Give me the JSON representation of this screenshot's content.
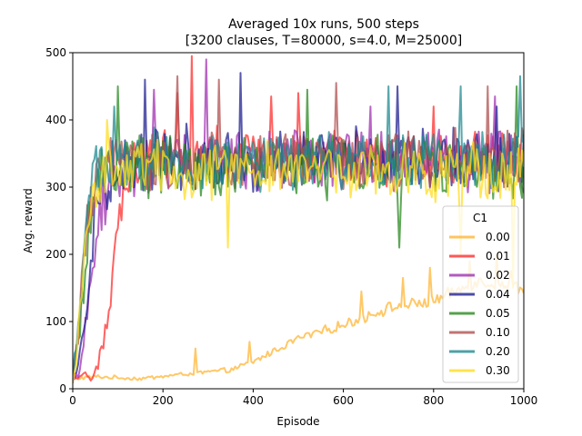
{
  "chart_data": {
    "type": "line",
    "title": "Averaged 10x runs, 500 steps",
    "subtitle": "[3200 clauses, T=80000, s=4.0, M=25000]",
    "xlabel": "Episode",
    "ylabel": "Avg. reward",
    "xlim": [
      0,
      1000
    ],
    "ylim": [
      0,
      500
    ],
    "x_ticks": [
      "0",
      "200",
      "400",
      "600",
      "800",
      "1000"
    ],
    "y_ticks": [
      "0",
      "100",
      "200",
      "300",
      "400",
      "500"
    ],
    "grid": false,
    "legend": {
      "title": "C1",
      "placement": "lower-right"
    },
    "series": [
      {
        "name": "0.00",
        "color": "#ffb534",
        "anchors": [
          [
            0,
            15
          ],
          [
            50,
            18
          ],
          [
            150,
            15
          ],
          [
            250,
            22
          ],
          [
            300,
            25
          ],
          [
            350,
            28
          ],
          [
            400,
            40
          ],
          [
            500,
            75
          ],
          [
            600,
            95
          ],
          [
            700,
            120
          ],
          [
            800,
            130
          ],
          [
            900,
            160
          ],
          [
            1000,
            150
          ]
        ],
        "noise": 12,
        "spikes": [
          [
            270,
            60
          ],
          [
            390,
            70
          ],
          [
            640,
            145
          ],
          [
            730,
            165
          ],
          [
            790,
            180
          ],
          [
            880,
            190
          ],
          [
            940,
            200
          ],
          [
            970,
            175
          ]
        ]
      },
      {
        "name": "0.01",
        "color": "#ff2d2d",
        "anchors": [
          [
            0,
            15
          ],
          [
            20,
            15
          ],
          [
            50,
            25
          ],
          [
            80,
            100
          ],
          [
            100,
            250
          ],
          [
            120,
            320
          ],
          [
            150,
            340
          ],
          [
            200,
            350
          ],
          [
            1000,
            340
          ]
        ],
        "noise": 35,
        "spikes": [
          [
            262,
            495
          ],
          [
            230,
            440
          ],
          [
            440,
            435
          ],
          [
            500,
            440
          ],
          [
            800,
            420
          ]
        ]
      },
      {
        "name": "0.02",
        "color": "#a030b0",
        "anchors": [
          [
            0,
            15
          ],
          [
            20,
            40
          ],
          [
            40,
            150
          ],
          [
            60,
            260
          ],
          [
            90,
            320
          ],
          [
            150,
            340
          ],
          [
            1000,
            340
          ]
        ],
        "noise": 40,
        "spikes": [
          [
            295,
            490
          ],
          [
            180,
            445
          ],
          [
            660,
            420
          ],
          [
            935,
            435
          ]
        ]
      },
      {
        "name": "0.04",
        "color": "#202090",
        "anchors": [
          [
            0,
            15
          ],
          [
            20,
            60
          ],
          [
            40,
            200
          ],
          [
            60,
            300
          ],
          [
            100,
            330
          ],
          [
            200,
            345
          ],
          [
            1000,
            340
          ]
        ],
        "noise": 42,
        "spikes": [
          [
            160,
            460
          ],
          [
            370,
            470
          ],
          [
            720,
            450
          ],
          [
            940,
            420
          ]
        ]
      },
      {
        "name": "0.05",
        "color": "#2a8a20",
        "anchors": [
          [
            0,
            15
          ],
          [
            15,
            80
          ],
          [
            35,
            250
          ],
          [
            60,
            310
          ],
          [
            100,
            330
          ],
          [
            1000,
            330
          ]
        ],
        "noise": 40,
        "spikes": [
          [
            100,
            450
          ],
          [
            725,
            210
          ],
          [
            520,
            445
          ],
          [
            985,
            450
          ]
        ]
      },
      {
        "name": "0.10",
        "color": "#b05050",
        "anchors": [
          [
            0,
            15
          ],
          [
            15,
            100
          ],
          [
            35,
            260
          ],
          [
            60,
            320
          ],
          [
            100,
            340
          ],
          [
            1000,
            345
          ]
        ],
        "noise": 40,
        "spikes": [
          [
            230,
            465
          ],
          [
            325,
            460
          ],
          [
            585,
            455
          ],
          [
            920,
            450
          ]
        ]
      },
      {
        "name": "0.20",
        "color": "#208a90",
        "anchors": [
          [
            0,
            15
          ],
          [
            15,
            120
          ],
          [
            30,
            250
          ],
          [
            50,
            310
          ],
          [
            100,
            340
          ],
          [
            1000,
            340
          ]
        ],
        "noise": 40,
        "spikes": [
          [
            90,
            420
          ],
          [
            700,
            450
          ],
          [
            990,
            465
          ],
          [
            860,
            450
          ]
        ]
      },
      {
        "name": "0.30",
        "color": "#ffdd20",
        "anchors": [
          [
            0,
            15
          ],
          [
            10,
            60
          ],
          [
            25,
            200
          ],
          [
            45,
            300
          ],
          [
            80,
            330
          ],
          [
            1000,
            320
          ]
        ],
        "noise": 38,
        "spikes": [
          [
            75,
            400
          ],
          [
            345,
            210
          ],
          [
            860,
            200
          ],
          [
            975,
            150
          ]
        ]
      }
    ]
  }
}
